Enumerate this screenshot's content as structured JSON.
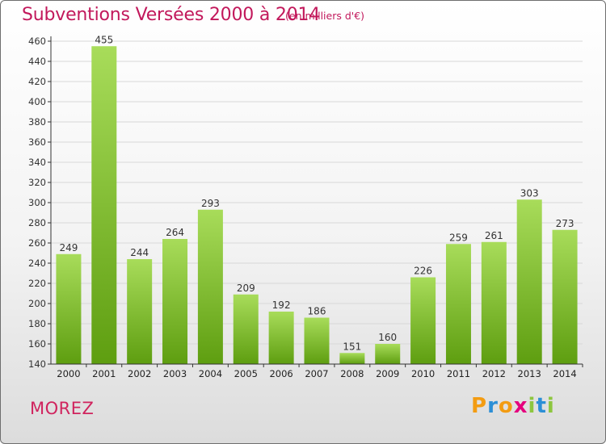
{
  "title": "Subventions Versées 2000 à 2014",
  "subtitle": "(en milliers d'€)",
  "commune": "MOREZ",
  "brand": {
    "letters": [
      "P",
      "r",
      "o",
      "x",
      "i",
      "t",
      "i"
    ],
    "colors": [
      "#f39c12",
      "#2c8fd6",
      "#f39c12",
      "#e5007e",
      "#8dc63f",
      "#2c8fd6",
      "#8dc63f"
    ]
  },
  "colors": {
    "title": "#c2185b",
    "bar_top": "#a8dc5a",
    "bar_bottom": "#5e9e10",
    "grid": "#d8d8d8"
  },
  "chart_data": {
    "type": "bar",
    "categories": [
      "2000",
      "2001",
      "2002",
      "2003",
      "2004",
      "2005",
      "2006",
      "2007",
      "2008",
      "2009",
      "2010",
      "2011",
      "2012",
      "2013",
      "2014"
    ],
    "values": [
      249,
      455,
      244,
      264,
      293,
      209,
      192,
      186,
      151,
      160,
      226,
      259,
      261,
      303,
      273
    ],
    "ylim": [
      140,
      460
    ],
    "yticks": [
      140,
      160,
      180,
      200,
      220,
      240,
      260,
      280,
      300,
      320,
      340,
      360,
      380,
      400,
      420,
      440,
      460
    ],
    "grid": true,
    "data_labels": true
  }
}
